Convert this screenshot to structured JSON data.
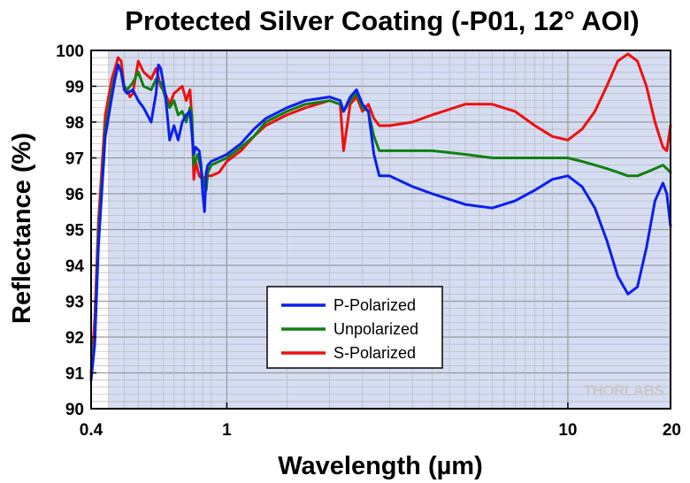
{
  "chart_data": {
    "type": "line",
    "title": "Protected Silver Coating (-P01, 12° AOI)",
    "xlabel": "Wavelength (µm)",
    "ylabel": "Reflectance (%)",
    "x_scale": "log",
    "xlim": [
      0.4,
      20
    ],
    "ylim": [
      90,
      100
    ],
    "x_ticks": [
      0.4,
      1,
      10,
      20
    ],
    "x_tick_labels": [
      "0.4",
      "1",
      "10",
      "20"
    ],
    "y_ticks": [
      90,
      91,
      92,
      93,
      94,
      95,
      96,
      97,
      98,
      99,
      100
    ],
    "y_tick_labels": [
      "90",
      "91",
      "92",
      "93",
      "94",
      "95",
      "96",
      "97",
      "98",
      "99",
      "100"
    ],
    "grid": true,
    "shaded_region": [
      0.45,
      20
    ],
    "legend_position": "lower-center",
    "watermark": "THORLABS",
    "series": [
      {
        "name": "P-Polarized",
        "color": "#0a1ff0",
        "x": [
          0.4,
          0.41,
          0.42,
          0.44,
          0.46,
          0.47,
          0.48,
          0.49,
          0.5,
          0.51,
          0.53,
          0.55,
          0.57,
          0.6,
          0.62,
          0.63,
          0.64,
          0.66,
          0.68,
          0.7,
          0.72,
          0.74,
          0.76,
          0.78,
          0.79,
          0.8,
          0.81,
          0.83,
          0.84,
          0.85,
          0.86,
          0.87,
          0.88,
          0.9,
          0.95,
          1.0,
          1.1,
          1.2,
          1.3,
          1.5,
          1.7,
          2.0,
          2.15,
          2.2,
          2.3,
          2.4,
          2.5,
          2.6,
          2.7,
          2.8,
          3.0,
          3.5,
          4.0,
          5.0,
          6.0,
          7.0,
          8.0,
          9.0,
          10.0,
          11.0,
          12.0,
          13.0,
          14.0,
          15.0,
          16.0,
          17.0,
          18.0,
          19.0,
          19.5,
          20.0
        ],
        "values": [
          90.8,
          91.8,
          94.5,
          97.6,
          98.7,
          99.2,
          99.6,
          99.4,
          98.9,
          98.8,
          98.9,
          98.6,
          98.4,
          98.0,
          98.8,
          99.6,
          99.5,
          98.8,
          97.5,
          97.9,
          97.5,
          98.0,
          98.2,
          98.3,
          97.7,
          97.1,
          97.3,
          97.2,
          96.8,
          96.0,
          95.5,
          96.6,
          96.8,
          96.9,
          97.0,
          97.1,
          97.4,
          97.8,
          98.1,
          98.4,
          98.6,
          98.7,
          98.6,
          98.3,
          98.7,
          98.9,
          98.5,
          98.3,
          97.1,
          96.5,
          96.5,
          96.2,
          96.0,
          95.7,
          95.6,
          95.8,
          96.1,
          96.4,
          96.5,
          96.2,
          95.6,
          94.7,
          93.7,
          93.2,
          93.4,
          94.5,
          95.8,
          96.3,
          96.0,
          95.1
        ]
      },
      {
        "name": "Unpolarized",
        "color": "#108010",
        "x": [
          0.4,
          0.41,
          0.42,
          0.44,
          0.46,
          0.47,
          0.48,
          0.49,
          0.5,
          0.51,
          0.53,
          0.55,
          0.57,
          0.6,
          0.62,
          0.64,
          0.66,
          0.68,
          0.7,
          0.72,
          0.74,
          0.76,
          0.78,
          0.79,
          0.8,
          0.82,
          0.84,
          0.86,
          0.87,
          0.88,
          0.9,
          0.95,
          1.0,
          1.1,
          1.2,
          1.3,
          1.5,
          1.7,
          2.0,
          2.15,
          2.2,
          2.3,
          2.4,
          2.5,
          2.6,
          2.7,
          2.8,
          3.0,
          3.5,
          4.0,
          5.0,
          6.0,
          7.0,
          8.0,
          9.0,
          10.0,
          11.0,
          12.0,
          13.0,
          14.0,
          15.0,
          16.0,
          17.0,
          18.0,
          19.0,
          20.0
        ],
        "values": [
          90.9,
          92.0,
          94.8,
          97.8,
          98.9,
          99.3,
          99.6,
          99.4,
          99.0,
          98.9,
          99.1,
          99.4,
          99.0,
          98.9,
          99.2,
          99.1,
          98.7,
          98.4,
          98.6,
          98.2,
          98.3,
          98.0,
          98.4,
          98.2,
          96.8,
          97.1,
          96.7,
          96.2,
          96.1,
          96.6,
          96.8,
          96.9,
          97.0,
          97.3,
          97.6,
          98.0,
          98.3,
          98.5,
          98.6,
          98.5,
          98.3,
          98.6,
          98.8,
          98.4,
          98.3,
          97.6,
          97.2,
          97.2,
          97.2,
          97.2,
          97.1,
          97.0,
          97.0,
          97.0,
          97.0,
          97.0,
          96.9,
          96.8,
          96.7,
          96.6,
          96.5,
          96.5,
          96.6,
          96.7,
          96.8,
          96.6
        ]
      },
      {
        "name": "S-Polarized",
        "color": "#ee1010",
        "x": [
          0.4,
          0.41,
          0.42,
          0.44,
          0.46,
          0.47,
          0.48,
          0.49,
          0.5,
          0.51,
          0.52,
          0.53,
          0.55,
          0.57,
          0.6,
          0.62,
          0.64,
          0.66,
          0.68,
          0.7,
          0.72,
          0.74,
          0.76,
          0.78,
          0.79,
          0.8,
          0.81,
          0.83,
          0.85,
          0.87,
          0.9,
          0.95,
          1.0,
          1.1,
          1.2,
          1.3,
          1.5,
          1.7,
          2.0,
          2.15,
          2.2,
          2.3,
          2.4,
          2.5,
          2.6,
          2.7,
          2.8,
          3.0,
          3.5,
          4.0,
          5.0,
          6.0,
          7.0,
          8.0,
          9.0,
          10.0,
          11.0,
          12.0,
          13.0,
          14.0,
          15.0,
          16.0,
          17.0,
          18.0,
          19.0,
          19.5,
          20.0
        ],
        "values": [
          91.0,
          92.5,
          95.2,
          98.2,
          99.2,
          99.5,
          99.8,
          99.7,
          99.0,
          98.9,
          98.7,
          98.8,
          99.7,
          99.4,
          99.2,
          99.5,
          99.0,
          98.8,
          98.5,
          98.8,
          98.9,
          99.0,
          98.6,
          98.9,
          98.1,
          96.4,
          96.9,
          96.5,
          96.4,
          96.5,
          96.5,
          96.6,
          96.9,
          97.2,
          97.6,
          97.9,
          98.2,
          98.4,
          98.6,
          98.5,
          97.2,
          98.5,
          98.7,
          98.3,
          98.5,
          98.1,
          97.9,
          97.9,
          98.0,
          98.2,
          98.5,
          98.5,
          98.3,
          97.9,
          97.6,
          97.5,
          97.8,
          98.3,
          99.0,
          99.7,
          99.9,
          99.7,
          99.0,
          98.0,
          97.3,
          97.2,
          97.9
        ]
      }
    ]
  }
}
